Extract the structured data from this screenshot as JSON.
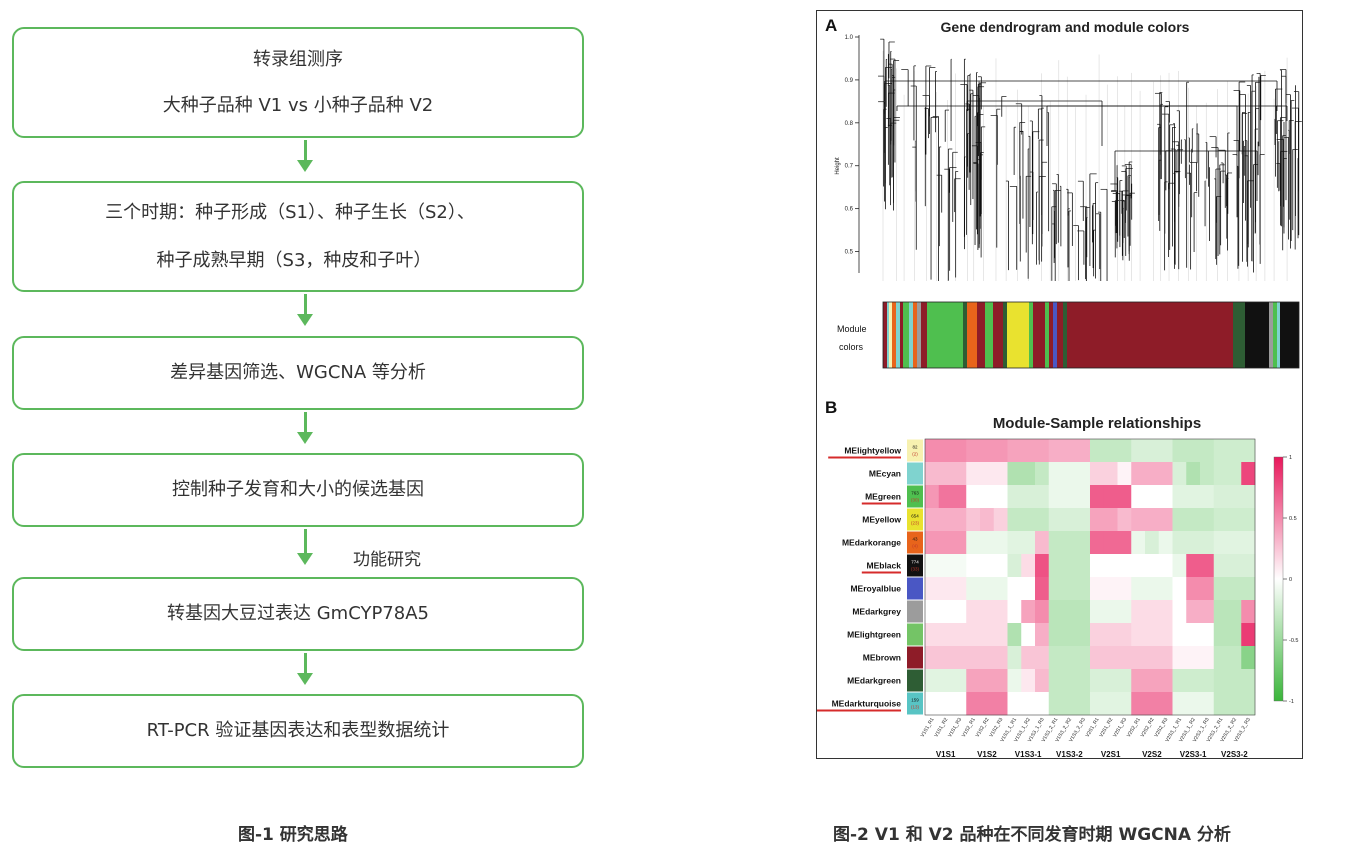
{
  "flowchart": {
    "box1": {
      "line1": "转录组测序",
      "line2": "大种子品种 V1 vs 小种子品种 V2"
    },
    "box2": {
      "line1": "三个时期：种子形成（S1）、种子生长（S2）、",
      "line2": "种子成熟早期（S3，种皮和子叶）"
    },
    "box3": {
      "line1": "差异基因筛选、WGCNA 等分析"
    },
    "box4": {
      "line1": "控制种子发育和大小的候选基因"
    },
    "arrow_label": "功能研究",
    "box5": {
      "line1": "转基因大豆过表达 GmCYP78A5"
    },
    "box6": {
      "line1": "RT-PCR 验证基因表达和表型数据统计"
    }
  },
  "captions": {
    "fig1": "图-1  研究思路",
    "fig2": "图-2  V1 和 V2 品种在不同发育时期 WGCNA 分析"
  },
  "panelA": {
    "label": "A",
    "title": "Gene dendrogram and module colors",
    "ylabel": "Height",
    "yticks": [
      "1.0",
      "0.9",
      "0.8",
      "0.7",
      "0.6",
      "0.5"
    ],
    "module_label_line1": "Module",
    "module_label_line2": "colors"
  },
  "panelB": {
    "label": "B",
    "title": "Module-Sample relationships",
    "modules": [
      "MElightyellow",
      "MEcyan",
      "MEgreen",
      "MEyellow",
      "MEdarkorange",
      "MEblack",
      "MEroyalblue",
      "MEdarkgrey",
      "MElightgreen",
      "MEbrown",
      "MEdarkgreen",
      "MEdarkturquoise"
    ],
    "highlighted_modules": [
      "MElightyellow",
      "MEgreen",
      "MEblack",
      "MEdarkturquoise"
    ],
    "module_colors": [
      "#f7f1b0",
      "#7fd3cf",
      "#4fbf4f",
      "#e9e22f",
      "#e8641b",
      "#111111",
      "#4a57c4",
      "#9c9c9c",
      "#74c466",
      "#8e1c28",
      "#2e5d34",
      "#58c4c4"
    ],
    "module_counts": [
      "82\n(2)",
      "",
      "763\n(30)",
      "654\n(23)",
      "43\n(4)",
      "774\n(33)",
      "",
      "",
      "",
      "",
      "",
      "159\n(13)"
    ],
    "sample_labels": [
      "V1S1_R1",
      "V1S1_R2",
      "V1S1_R3",
      "V1S2_R1",
      "V1S2_R2",
      "V1S2_R3",
      "V1S3_1_R1",
      "V1S3_1_R2",
      "V1S3_1_R3",
      "V1S3_2_R1",
      "V1S3_2_R2",
      "V1S3_2_R3",
      "V2S1_R1",
      "V2S1_R2",
      "V2S1_R3",
      "V2S2_R1",
      "V2S2_R2",
      "V2S2_R3",
      "V2S3_1_R1",
      "V2S3_1_R2",
      "V2S3_1_R3",
      "V2S3_2_R1",
      "V2S3_2_R2",
      "V2S3_2_R3"
    ],
    "group_labels": [
      "V1S1",
      "V1S2",
      "V1S3-1",
      "V1S3-2",
      "V2S1",
      "V2S2",
      "V2S3-1",
      "V2S3-2"
    ],
    "scale_ticks": [
      "1",
      "0.5",
      "0",
      "-0.5",
      "-1"
    ],
    "scale_range": [
      -1,
      1
    ],
    "correlations": [
      [
        0.5,
        0.5,
        0.5,
        0.45,
        0.45,
        0.45,
        0.4,
        0.4,
        0.4,
        0.35,
        0.35,
        0.35,
        -0.3,
        -0.3,
        -0.3,
        -0.2,
        -0.2,
        -0.2,
        -0.3,
        -0.3,
        -0.3,
        -0.25,
        -0.25,
        -0.25
      ],
      [
        0.3,
        0.3,
        0.3,
        0.1,
        0.1,
        0.1,
        -0.4,
        -0.4,
        -0.3,
        -0.1,
        -0.1,
        -0.1,
        0.2,
        0.2,
        0.05,
        0.35,
        0.35,
        0.35,
        -0.2,
        -0.4,
        -0.3,
        -0.25,
        -0.25,
        0.8
      ],
      [
        0.45,
        0.6,
        0.6,
        0.0,
        0.0,
        0.0,
        -0.2,
        -0.2,
        -0.2,
        -0.1,
        -0.1,
        -0.1,
        0.7,
        0.7,
        0.7,
        0.0,
        0.0,
        0.0,
        -0.15,
        -0.15,
        -0.15,
        -0.2,
        -0.2,
        -0.2
      ],
      [
        0.35,
        0.35,
        0.35,
        0.25,
        0.3,
        0.2,
        -0.3,
        -0.3,
        -0.3,
        -0.2,
        -0.2,
        -0.2,
        0.4,
        0.4,
        0.3,
        0.35,
        0.35,
        0.35,
        -0.3,
        -0.3,
        -0.3,
        -0.25,
        -0.25,
        -0.25
      ],
      [
        0.45,
        0.45,
        0.45,
        -0.1,
        -0.1,
        -0.1,
        -0.15,
        -0.15,
        0.3,
        -0.3,
        -0.3,
        -0.3,
        0.65,
        0.65,
        0.65,
        -0.1,
        -0.2,
        -0.1,
        -0.2,
        -0.2,
        -0.2,
        -0.15,
        -0.15,
        -0.15
      ],
      [
        -0.05,
        -0.05,
        -0.05,
        0.0,
        0.0,
        0.0,
        -0.2,
        0.15,
        0.75,
        -0.3,
        -0.3,
        -0.3,
        0.0,
        0.0,
        0.0,
        0.0,
        0.0,
        0.0,
        -0.1,
        0.7,
        0.7,
        -0.2,
        -0.2,
        -0.2
      ],
      [
        0.1,
        0.1,
        0.1,
        -0.1,
        -0.1,
        -0.1,
        0.0,
        0.0,
        0.7,
        -0.3,
        -0.3,
        -0.3,
        0.05,
        0.05,
        0.05,
        -0.1,
        -0.1,
        -0.1,
        0.0,
        0.5,
        0.5,
        -0.3,
        -0.3,
        -0.3
      ],
      [
        0.0,
        0.0,
        0.0,
        0.15,
        0.15,
        0.15,
        0.0,
        0.4,
        0.5,
        -0.35,
        -0.35,
        -0.35,
        -0.1,
        -0.1,
        -0.1,
        0.15,
        0.15,
        0.15,
        0.0,
        0.35,
        0.35,
        -0.35,
        -0.35,
        0.5
      ],
      [
        0.15,
        0.15,
        0.15,
        0.15,
        0.15,
        0.15,
        -0.4,
        0.0,
        0.35,
        -0.35,
        -0.35,
        -0.35,
        0.2,
        0.2,
        0.2,
        0.15,
        0.15,
        0.15,
        0.0,
        0.0,
        0.0,
        -0.35,
        -0.35,
        0.85
      ],
      [
        0.25,
        0.25,
        0.25,
        0.25,
        0.25,
        0.25,
        -0.2,
        0.25,
        0.25,
        -0.3,
        -0.3,
        -0.3,
        0.25,
        0.25,
        0.25,
        0.25,
        0.25,
        0.25,
        0.05,
        0.05,
        0.05,
        -0.3,
        -0.3,
        -0.6
      ],
      [
        -0.15,
        -0.15,
        -0.15,
        0.4,
        0.4,
        0.4,
        -0.1,
        0.1,
        0.3,
        -0.3,
        -0.3,
        -0.3,
        -0.2,
        -0.2,
        -0.2,
        0.4,
        0.4,
        0.4,
        -0.25,
        -0.25,
        -0.25,
        -0.3,
        -0.3,
        -0.3
      ],
      [
        0.0,
        0.0,
        0.0,
        0.55,
        0.55,
        0.55,
        0.0,
        0.0,
        0.0,
        -0.3,
        -0.3,
        -0.3,
        -0.15,
        -0.15,
        -0.15,
        0.55,
        0.55,
        0.55,
        -0.1,
        -0.1,
        -0.1,
        -0.3,
        -0.3,
        -0.3
      ]
    ]
  },
  "colors": {
    "flow_green": "#5cb85c",
    "highlight_red": "#d62b2b",
    "positive": "#e8185b",
    "negative": "#3ab53a"
  }
}
